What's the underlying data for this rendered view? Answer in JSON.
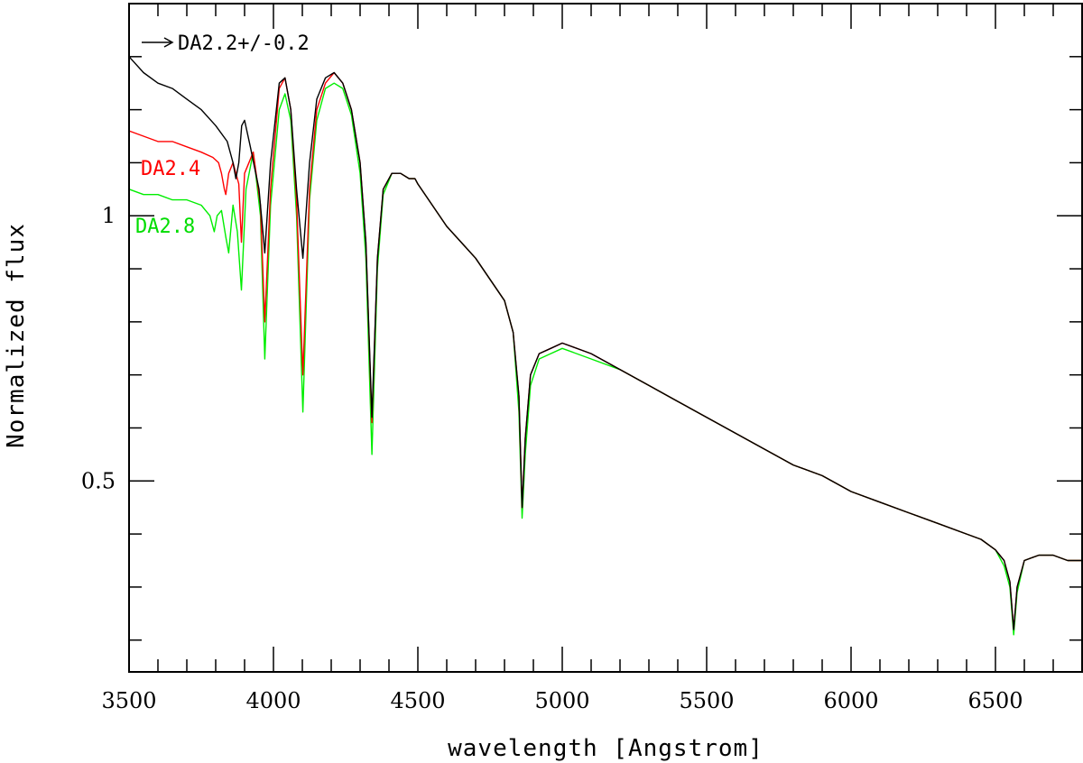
{
  "chart_data": {
    "type": "line",
    "title": "",
    "xlabel": "wavelength [Angstrom]",
    "ylabel": "Normalized flux",
    "xlim": [
      3500,
      6800
    ],
    "ylim": [
      0.14,
      1.4
    ],
    "x_ticks_major": [
      3500,
      4000,
      4500,
      5000,
      5500,
      6000,
      6500
    ],
    "x_tick_labels": [
      "3500",
      "4000",
      "4500",
      "5000",
      "5500",
      "6000",
      "6500"
    ],
    "x_ticks_minor_step": 100,
    "y_ticks_major": [
      0.5,
      1
    ],
    "y_tick_labels": [
      "0.5",
      "1"
    ],
    "y_ticks_minor_step": 0.1,
    "grid": false,
    "annotations": [
      {
        "text": "DA2.2+/-0.2",
        "color": "#000000",
        "arrow": true
      },
      {
        "text": "DA2.4",
        "color": "#ff0000"
      },
      {
        "text": "DA2.8",
        "color": "#00ee00"
      }
    ],
    "series": [
      {
        "color": "#000000",
        "x": [
          3500,
          3550,
          3600,
          3650,
          3700,
          3750,
          3800,
          3840,
          3860,
          3870,
          3880,
          3890,
          3900,
          3920,
          3950,
          3970,
          3990,
          4020,
          4040,
          4060,
          4080,
          4102,
          4125,
          4150,
          4180,
          4210,
          4240,
          4270,
          4300,
          4320,
          4341,
          4360,
          4380,
          4410,
          4440,
          4470,
          4490,
          4500,
          4550,
          4600,
          4650,
          4700,
          4750,
          4800,
          4830,
          4850,
          4861,
          4872,
          4890,
          4920,
          4960,
          5000,
          5100,
          5200,
          5300,
          5400,
          5500,
          5600,
          5700,
          5800,
          5900,
          6000,
          6100,
          6200,
          6300,
          6400,
          6450,
          6500,
          6530,
          6550,
          6563,
          6575,
          6600,
          6650,
          6700,
          6750,
          6800
        ],
        "y": [
          1.3,
          1.27,
          1.25,
          1.24,
          1.22,
          1.2,
          1.17,
          1.14,
          1.1,
          1.07,
          1.1,
          1.17,
          1.18,
          1.13,
          1.05,
          0.93,
          1.1,
          1.25,
          1.26,
          1.2,
          1.05,
          0.92,
          1.1,
          1.22,
          1.26,
          1.27,
          1.25,
          1.2,
          1.1,
          0.95,
          0.62,
          0.92,
          1.05,
          1.08,
          1.08,
          1.07,
          1.07,
          1.06,
          1.02,
          0.98,
          0.95,
          0.92,
          0.88,
          0.84,
          0.78,
          0.66,
          0.45,
          0.58,
          0.7,
          0.74,
          0.75,
          0.76,
          0.74,
          0.71,
          0.68,
          0.65,
          0.62,
          0.59,
          0.56,
          0.53,
          0.51,
          0.48,
          0.46,
          0.44,
          0.42,
          0.4,
          0.39,
          0.37,
          0.35,
          0.31,
          0.22,
          0.3,
          0.35,
          0.36,
          0.36,
          0.35,
          0.35
        ]
      },
      {
        "color": "#ff0000",
        "x": [
          3500,
          3550,
          3600,
          3650,
          3700,
          3750,
          3790,
          3810,
          3820,
          3830,
          3835,
          3845,
          3860,
          3880,
          3889,
          3900,
          3930,
          3955,
          3970,
          3990,
          4020,
          4040,
          4060,
          4080,
          4102,
          4125,
          4150,
          4180,
          4210,
          4240,
          4270,
          4300,
          4320,
          4341,
          4360,
          4380,
          4410,
          4440,
          4470,
          4490,
          4500,
          4550,
          4600,
          4650,
          4700,
          4750,
          4800,
          4830,
          4850,
          4861,
          4872,
          4890,
          4920,
          4960,
          5000,
          5100,
          5200,
          5300,
          5400,
          5500,
          5600,
          5700,
          5800,
          5900,
          6000,
          6100,
          6200,
          6300,
          6400,
          6450,
          6500,
          6530,
          6550,
          6563,
          6575,
          6600,
          6650,
          6700,
          6750,
          6800
        ],
        "y": [
          1.16,
          1.15,
          1.14,
          1.14,
          1.13,
          1.12,
          1.11,
          1.1,
          1.08,
          1.05,
          1.04,
          1.08,
          1.1,
          1.06,
          0.95,
          1.08,
          1.12,
          1.02,
          0.8,
          1.05,
          1.24,
          1.26,
          1.2,
          1.03,
          0.7,
          1.05,
          1.2,
          1.25,
          1.27,
          1.25,
          1.2,
          1.1,
          0.95,
          0.61,
          0.92,
          1.05,
          1.08,
          1.08,
          1.07,
          1.07,
          1.06,
          1.02,
          0.98,
          0.95,
          0.92,
          0.88,
          0.84,
          0.78,
          0.66,
          0.45,
          0.58,
          0.7,
          0.74,
          0.75,
          0.76,
          0.74,
          0.71,
          0.68,
          0.65,
          0.62,
          0.59,
          0.56,
          0.53,
          0.51,
          0.48,
          0.46,
          0.44,
          0.42,
          0.4,
          0.39,
          0.37,
          0.35,
          0.31,
          0.22,
          0.3,
          0.35,
          0.36,
          0.36,
          0.35,
          0.35
        ]
      },
      {
        "color": "#00ee00",
        "x": [
          3500,
          3550,
          3600,
          3650,
          3700,
          3750,
          3780,
          3795,
          3805,
          3820,
          3835,
          3845,
          3860,
          3875,
          3889,
          3905,
          3930,
          3955,
          3970,
          3990,
          4020,
          4040,
          4060,
          4080,
          4102,
          4125,
          4150,
          4180,
          4210,
          4240,
          4270,
          4300,
          4320,
          4341,
          4360,
          4380,
          4410,
          4440,
          4470,
          4490,
          4500,
          4550,
          4600,
          4650,
          4700,
          4750,
          4800,
          4830,
          4850,
          4861,
          4872,
          4890,
          4920,
          4960,
          5000,
          5100,
          5200,
          5300,
          5400,
          5500,
          5600,
          5700,
          5800,
          5900,
          6000,
          6100,
          6200,
          6300,
          6400,
          6450,
          6500,
          6530,
          6550,
          6563,
          6575,
          6600,
          6650,
          6700,
          6750,
          6800
        ],
        "y": [
          1.05,
          1.04,
          1.04,
          1.03,
          1.03,
          1.02,
          1.0,
          0.97,
          1.0,
          1.01,
          0.96,
          0.93,
          1.02,
          0.97,
          0.86,
          1.05,
          1.12,
          1.0,
          0.73,
          1.02,
          1.2,
          1.23,
          1.18,
          1.0,
          0.63,
          1.03,
          1.18,
          1.24,
          1.25,
          1.24,
          1.19,
          1.08,
          0.92,
          0.55,
          0.9,
          1.04,
          1.08,
          1.08,
          1.07,
          1.07,
          1.06,
          1.02,
          0.98,
          0.95,
          0.92,
          0.88,
          0.84,
          0.78,
          0.63,
          0.43,
          0.55,
          0.68,
          0.73,
          0.74,
          0.75,
          0.73,
          0.71,
          0.68,
          0.65,
          0.62,
          0.59,
          0.56,
          0.53,
          0.51,
          0.48,
          0.46,
          0.44,
          0.42,
          0.4,
          0.39,
          0.37,
          0.34,
          0.3,
          0.21,
          0.29,
          0.35,
          0.36,
          0.36,
          0.35,
          0.35
        ]
      }
    ]
  }
}
